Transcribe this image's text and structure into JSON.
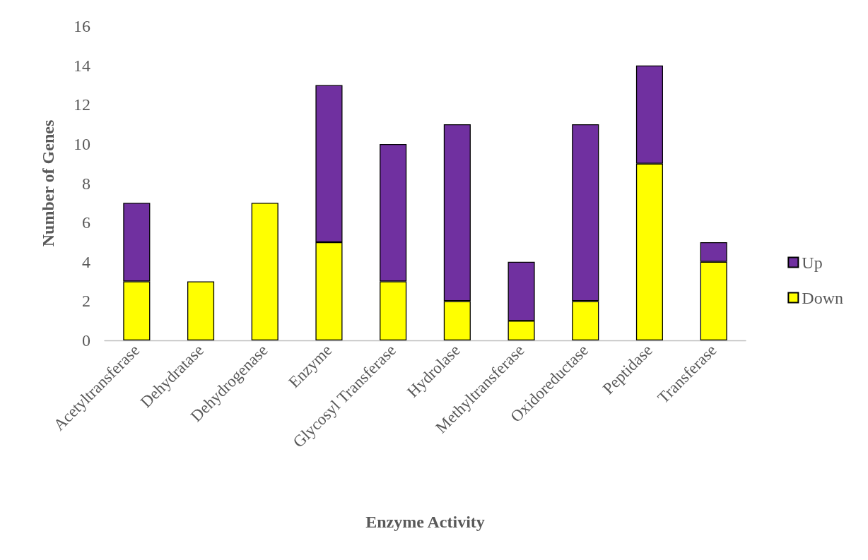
{
  "chart_data": {
    "type": "bar",
    "stacked": true,
    "xlabel": "Enzyme Activity",
    "ylabel": "Number of Genes",
    "categories": [
      "Acetyltransferase",
      "Dehydratase",
      "Dehydrogenase",
      "Enzyme",
      "Glycosyl Transferase",
      "Hydrolase",
      "Methyltransferase",
      "Oxidoreductase",
      "Peptidase",
      "Transferase"
    ],
    "series": [
      {
        "name": "Down",
        "color": "#ffff00",
        "values": [
          3,
          3,
          7,
          5,
          3,
          2,
          1,
          2,
          9,
          4
        ]
      },
      {
        "name": "Up",
        "color": "#7030a0",
        "values": [
          4,
          null,
          null,
          8,
          7,
          9,
          3,
          9,
          5,
          1
        ]
      }
    ],
    "ylim": [
      0,
      16
    ],
    "yticks": [
      0,
      2,
      4,
      6,
      8,
      10,
      12,
      14,
      16
    ],
    "grid": false,
    "legend": "right"
  }
}
